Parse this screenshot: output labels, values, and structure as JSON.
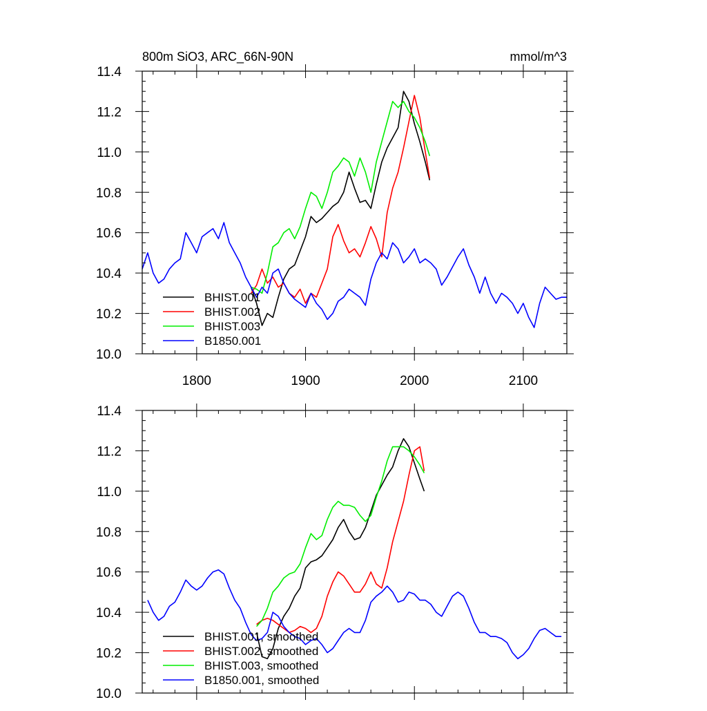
{
  "chart_data": [
    {
      "type": "line",
      "title": "800m SiO3, ARC_66N-90N",
      "units": "mmol/m^3",
      "xlabel": "",
      "ylabel": "",
      "xlim": [
        1750,
        2140
      ],
      "ylim": [
        10.0,
        11.4
      ],
      "xticks": [
        1800,
        1900,
        2000,
        2100
      ],
      "yticks": [
        10.0,
        10.2,
        10.4,
        10.6,
        10.8,
        11.0,
        11.2,
        11.4
      ],
      "xtick_labels": [
        "1800",
        "1900",
        "2000",
        "2100"
      ],
      "ytick_labels": [
        "10.0",
        "10.2",
        "10.4",
        "10.6",
        "10.8",
        "11.0",
        "11.2",
        "11.4"
      ],
      "grid": false,
      "legend_position": "bottom-left",
      "series": [
        {
          "name": "BHIST.001",
          "color": "#000000",
          "x": [
            1850,
            1855,
            1860,
            1865,
            1870,
            1875,
            1880,
            1885,
            1890,
            1895,
            1900,
            1905,
            1910,
            1915,
            1920,
            1925,
            1930,
            1935,
            1940,
            1945,
            1950,
            1955,
            1960,
            1965,
            1970,
            1975,
            1980,
            1985,
            1990,
            1995,
            2000,
            2005,
            2010,
            2014
          ],
          "y": [
            10.33,
            10.25,
            10.14,
            10.2,
            10.18,
            10.28,
            10.37,
            10.42,
            10.44,
            10.51,
            10.58,
            10.68,
            10.65,
            10.67,
            10.7,
            10.73,
            10.75,
            10.8,
            10.9,
            10.82,
            10.75,
            10.76,
            10.72,
            10.84,
            10.95,
            11.02,
            11.07,
            11.12,
            11.3,
            11.25,
            11.14,
            11.05,
            10.95,
            10.86
          ]
        },
        {
          "name": "BHIST.002",
          "color": "#ff0000",
          "x": [
            1850,
            1855,
            1860,
            1865,
            1870,
            1875,
            1880,
            1885,
            1890,
            1895,
            1900,
            1905,
            1910,
            1915,
            1920,
            1925,
            1930,
            1935,
            1940,
            1945,
            1950,
            1955,
            1960,
            1965,
            1970,
            1975,
            1980,
            1985,
            1990,
            1995,
            2000,
            2005,
            2010,
            2014
          ],
          "y": [
            10.3,
            10.34,
            10.42,
            10.35,
            10.38,
            10.33,
            10.35,
            10.3,
            10.28,
            10.32,
            10.25,
            10.3,
            10.28,
            10.35,
            10.42,
            10.58,
            10.64,
            10.56,
            10.5,
            10.52,
            10.48,
            10.55,
            10.63,
            10.57,
            10.48,
            10.7,
            10.82,
            10.9,
            11.02,
            11.15,
            11.28,
            11.17,
            11.0,
            10.87
          ]
        },
        {
          "name": "BHIST.003",
          "color": "#00ee00",
          "x": [
            1850,
            1855,
            1860,
            1865,
            1870,
            1875,
            1880,
            1885,
            1890,
            1895,
            1900,
            1905,
            1910,
            1915,
            1920,
            1925,
            1930,
            1935,
            1940,
            1945,
            1950,
            1955,
            1960,
            1965,
            1970,
            1975,
            1980,
            1985,
            1990,
            1995,
            2000,
            2005,
            2010,
            2014
          ],
          "y": [
            10.33,
            10.32,
            10.3,
            10.4,
            10.53,
            10.55,
            10.6,
            10.62,
            10.57,
            10.63,
            10.72,
            10.8,
            10.78,
            10.72,
            10.8,
            10.9,
            10.93,
            10.97,
            10.95,
            10.88,
            10.97,
            10.9,
            10.8,
            10.95,
            11.05,
            11.15,
            11.25,
            11.22,
            11.25,
            11.2,
            11.17,
            11.12,
            11.05,
            10.98
          ]
        },
        {
          "name": "B1850.001",
          "color": "#0000ff",
          "x": [
            1750,
            1755,
            1760,
            1765,
            1770,
            1775,
            1780,
            1785,
            1790,
            1795,
            1800,
            1805,
            1810,
            1815,
            1820,
            1825,
            1830,
            1835,
            1840,
            1845,
            1850,
            1855,
            1860,
            1865,
            1870,
            1875,
            1880,
            1885,
            1890,
            1895,
            1900,
            1905,
            1910,
            1915,
            1920,
            1925,
            1930,
            1935,
            1940,
            1945,
            1950,
            1955,
            1960,
            1965,
            1970,
            1975,
            1980,
            1985,
            1990,
            1995,
            2000,
            2005,
            2010,
            2015,
            2020,
            2025,
            2030,
            2035,
            2040,
            2045,
            2050,
            2055,
            2060,
            2065,
            2070,
            2075,
            2080,
            2085,
            2090,
            2095,
            2100,
            2105,
            2110,
            2115,
            2120,
            2125,
            2130,
            2135,
            2140
          ],
          "y": [
            10.42,
            10.5,
            10.4,
            10.35,
            10.37,
            10.42,
            10.45,
            10.47,
            10.6,
            10.55,
            10.5,
            10.58,
            10.6,
            10.62,
            10.57,
            10.65,
            10.55,
            10.5,
            10.45,
            10.38,
            10.33,
            10.28,
            10.33,
            10.3,
            10.4,
            10.42,
            10.35,
            10.3,
            10.27,
            10.25,
            10.23,
            10.3,
            10.25,
            10.22,
            10.17,
            10.2,
            10.26,
            10.28,
            10.32,
            10.3,
            10.28,
            10.24,
            10.37,
            10.45,
            10.5,
            10.47,
            10.55,
            10.52,
            10.45,
            10.48,
            10.52,
            10.45,
            10.47,
            10.45,
            10.42,
            10.34,
            10.38,
            10.43,
            10.48,
            10.52,
            10.44,
            10.38,
            10.3,
            10.38,
            10.3,
            10.25,
            10.3,
            10.28,
            10.25,
            10.2,
            10.25,
            10.18,
            10.13,
            10.25,
            10.33,
            10.3,
            10.27,
            10.28,
            10.28
          ]
        }
      ]
    },
    {
      "type": "line",
      "title": "",
      "xlabel": "",
      "ylabel": "",
      "xlim": [
        1750,
        2140
      ],
      "ylim": [
        10.0,
        11.4
      ],
      "xticks": [
        1800,
        1900,
        2000,
        2100
      ],
      "yticks": [
        10.0,
        10.2,
        10.4,
        10.6,
        10.8,
        11.0,
        11.2,
        11.4
      ],
      "ytick_labels": [
        "10.0",
        "10.2",
        "10.4",
        "10.6",
        "10.8",
        "11.0",
        "11.2",
        "11.4"
      ],
      "grid": false,
      "legend_position": "bottom-left",
      "series": [
        {
          "name": "BHIST.001, smoothed",
          "color": "#000000",
          "x": [
            1855,
            1860,
            1865,
            1870,
            1875,
            1880,
            1885,
            1890,
            1895,
            1900,
            1905,
            1910,
            1915,
            1920,
            1925,
            1930,
            1935,
            1940,
            1945,
            1950,
            1955,
            1960,
            1965,
            1970,
            1975,
            1980,
            1985,
            1990,
            1995,
            2000,
            2005,
            2009
          ],
          "y": [
            10.3,
            10.18,
            10.17,
            10.22,
            10.32,
            10.38,
            10.42,
            10.48,
            10.52,
            10.62,
            10.65,
            10.66,
            10.68,
            10.72,
            10.76,
            10.82,
            10.86,
            10.8,
            10.76,
            10.77,
            10.82,
            10.9,
            10.98,
            11.03,
            11.08,
            11.12,
            11.2,
            11.26,
            11.22,
            11.14,
            11.06,
            11.0
          ]
        },
        {
          "name": "BHIST.002, smoothed",
          "color": "#ff0000",
          "x": [
            1855,
            1860,
            1865,
            1870,
            1875,
            1880,
            1885,
            1890,
            1895,
            1900,
            1905,
            1910,
            1915,
            1920,
            1925,
            1930,
            1935,
            1940,
            1945,
            1950,
            1955,
            1960,
            1965,
            1970,
            1975,
            1980,
            1985,
            1990,
            1995,
            2000,
            2005,
            2009
          ],
          "y": [
            10.34,
            10.36,
            10.37,
            10.36,
            10.34,
            10.32,
            10.3,
            10.31,
            10.33,
            10.32,
            10.3,
            10.32,
            10.38,
            10.48,
            10.55,
            10.6,
            10.58,
            10.54,
            10.5,
            10.5,
            10.54,
            10.6,
            10.54,
            10.52,
            10.62,
            10.75,
            10.85,
            10.95,
            11.08,
            11.2,
            11.22,
            11.1
          ]
        },
        {
          "name": "BHIST.003, smoothed",
          "color": "#00ee00",
          "x": [
            1855,
            1860,
            1865,
            1870,
            1875,
            1880,
            1885,
            1890,
            1895,
            1900,
            1905,
            1910,
            1915,
            1920,
            1925,
            1930,
            1935,
            1940,
            1945,
            1950,
            1955,
            1960,
            1965,
            1970,
            1975,
            1980,
            1985,
            1990,
            1995,
            2000,
            2005,
            2009
          ],
          "y": [
            10.33,
            10.36,
            10.42,
            10.5,
            10.53,
            10.57,
            10.59,
            10.6,
            10.64,
            10.72,
            10.79,
            10.76,
            10.78,
            10.86,
            10.92,
            10.95,
            10.93,
            10.93,
            10.92,
            10.88,
            10.85,
            10.88,
            10.97,
            11.05,
            11.15,
            11.22,
            11.22,
            11.22,
            11.2,
            11.17,
            11.13,
            11.09
          ]
        },
        {
          "name": "B1850.001, smoothed",
          "color": "#0000ff",
          "x": [
            1755,
            1760,
            1765,
            1770,
            1775,
            1780,
            1785,
            1790,
            1795,
            1800,
            1805,
            1810,
            1815,
            1820,
            1825,
            1830,
            1835,
            1840,
            1845,
            1850,
            1855,
            1860,
            1865,
            1870,
            1875,
            1880,
            1885,
            1890,
            1895,
            1900,
            1905,
            1910,
            1915,
            1920,
            1925,
            1930,
            1935,
            1940,
            1945,
            1950,
            1955,
            1960,
            1965,
            1970,
            1975,
            1980,
            1985,
            1990,
            1995,
            2000,
            2005,
            2010,
            2015,
            2020,
            2025,
            2030,
            2035,
            2040,
            2045,
            2050,
            2055,
            2060,
            2065,
            2070,
            2075,
            2080,
            2085,
            2090,
            2095,
            2100,
            2105,
            2110,
            2115,
            2120,
            2125,
            2130,
            2135
          ],
          "y": [
            10.46,
            10.4,
            10.36,
            10.38,
            10.43,
            10.45,
            10.5,
            10.56,
            10.53,
            10.51,
            10.53,
            10.57,
            10.6,
            10.61,
            10.59,
            10.52,
            10.46,
            10.42,
            10.35,
            10.29,
            10.26,
            10.27,
            10.3,
            10.4,
            10.38,
            10.33,
            10.3,
            10.28,
            10.27,
            10.24,
            10.26,
            10.27,
            10.24,
            10.2,
            10.22,
            10.26,
            10.3,
            10.32,
            10.3,
            10.3,
            10.36,
            10.45,
            10.48,
            10.5,
            10.53,
            10.5,
            10.45,
            10.46,
            10.5,
            10.49,
            10.46,
            10.46,
            10.44,
            10.4,
            10.38,
            10.43,
            10.48,
            10.5,
            10.48,
            10.42,
            10.35,
            10.3,
            10.3,
            10.28,
            10.28,
            10.27,
            10.25,
            10.2,
            10.17,
            10.19,
            10.22,
            10.27,
            10.31,
            10.32,
            10.3,
            10.28,
            10.28
          ]
        }
      ]
    }
  ]
}
